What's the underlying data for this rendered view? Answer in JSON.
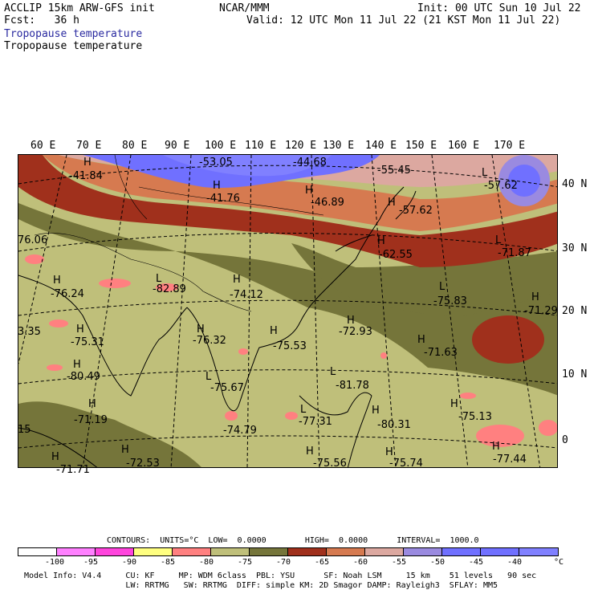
{
  "header": {
    "model_title": "ACCLIP 15km ARW-GFS init",
    "forecast": "Fcst:   36 h",
    "center": "NCAR/MMM",
    "init": "Init: 00 UTC Sun 10 Jul 22",
    "valid": "Valid: 12 UTC Mon 11 Jul 22 (21 KST Mon 11 Jul 22)",
    "field_title_blue": "Tropopause temperature",
    "field_title": "Tropopause temperature"
  },
  "map": {
    "lon_labels": [
      "60 E",
      "70 E",
      "80 E",
      "90 E",
      "100 E",
      "110 E",
      "120 E",
      "130 E",
      "140 E",
      "150 E",
      "160 E",
      "170 E"
    ],
    "lat_labels": [
      "40 N",
      "30 N",
      "20 N",
      "10 N",
      "0"
    ],
    "markers": [
      {
        "letter": "H",
        "value": "-41.84"
      },
      {
        "letter": "",
        "value": "-53.05"
      },
      {
        "letter": "",
        "value": "-44.68"
      },
      {
        "letter": "",
        "value": "-55.45"
      },
      {
        "letter": "L",
        "value": "-57.62"
      },
      {
        "letter": "H",
        "value": "-41.76"
      },
      {
        "letter": "H",
        "value": "-46.89"
      },
      {
        "letter": "H",
        "value": "-57.62"
      },
      {
        "letter": "",
        "value": "76.06"
      },
      {
        "letter": "H",
        "value": "-62.55"
      },
      {
        "letter": "L",
        "value": "-71.87"
      },
      {
        "letter": "L",
        "value": "-82.89"
      },
      {
        "letter": "H",
        "value": "-74.12"
      },
      {
        "letter": "H",
        "value": "-76.24"
      },
      {
        "letter": "L",
        "value": "-75.83"
      },
      {
        "letter": "H",
        "value": "-71.29"
      },
      {
        "letter": "",
        "value": "3.35"
      },
      {
        "letter": "H",
        "value": "-75.31"
      },
      {
        "letter": "H",
        "value": "-76.32"
      },
      {
        "letter": "H",
        "value": "-75.53"
      },
      {
        "letter": "H",
        "value": "-72.93"
      },
      {
        "letter": "H",
        "value": "-71.63"
      },
      {
        "letter": "H",
        "value": "-80.49"
      },
      {
        "letter": "L",
        "value": "-75.67"
      },
      {
        "letter": "L",
        "value": "-81.78"
      },
      {
        "letter": "H",
        "value": "-71.19"
      },
      {
        "letter": "",
        "value": "-74.79"
      },
      {
        "letter": "L",
        "value": "-77.31"
      },
      {
        "letter": "H",
        "value": "-80.31"
      },
      {
        "letter": "H",
        "value": "-75.13"
      },
      {
        "letter": "",
        "value": "15"
      },
      {
        "letter": "H",
        "value": "-72.53"
      },
      {
        "letter": "H",
        "value": "-71.71"
      },
      {
        "letter": "H",
        "value": "-75.56"
      },
      {
        "letter": "H",
        "value": "-75.74"
      },
      {
        "letter": "H",
        "value": "-77.44"
      }
    ]
  },
  "contours_line": "CONTOURS:  UNITS=°C  LOW=  0.0000        HIGH=  0.0000      INTERVAL=  1000.0",
  "colorbar": {
    "colors": [
      "#ffffff",
      "#ff80ff",
      "#ff44dd",
      "#ffff80",
      "#ff8080",
      "#bfbf7a",
      "#75753a",
      "#a0301c",
      "#d67a50",
      "#dca8a0",
      "#9a8ae0",
      "#7070ff",
      "#7070ff",
      "#8080ff"
    ],
    "ticks": [
      "-100",
      "-95",
      "-90",
      "-85",
      "-80",
      "-75",
      "-70",
      "-65",
      "-60",
      "-55",
      "-50",
      "-45",
      "-40"
    ],
    "unit": "°C"
  },
  "footer": {
    "line1": "Model Info: V4.4     CU: KF     MP: WDM 6class  PBL: YSU      SF: Noah LSM     15 km    51 levels   90 sec",
    "line2": "                     LW: RRTMG   SW: RRTMG  DIFF: simple KM: 2D Smagor DAMP: Rayleigh3  SFLAY: MM5"
  }
}
